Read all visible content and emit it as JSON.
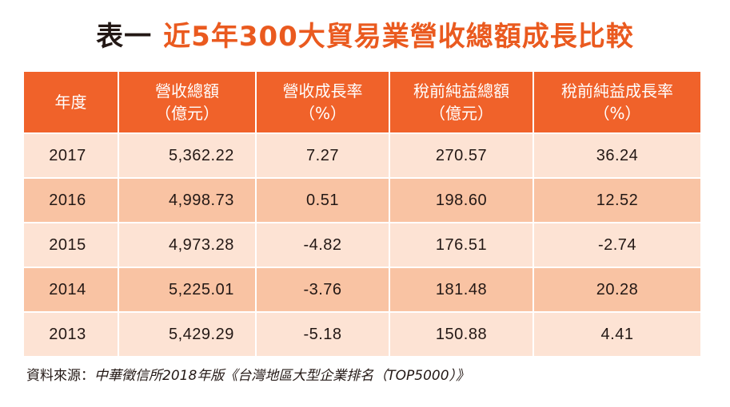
{
  "title": {
    "prefix": "表一",
    "main": "近5年300大貿易業營收總額成長比較"
  },
  "table": {
    "headers": [
      {
        "line1": "年度",
        "line2": ""
      },
      {
        "line1": "營收總額",
        "line2": "（億元）"
      },
      {
        "line1": "營收成長率",
        "line2": "（%）"
      },
      {
        "line1": "稅前純益總額",
        "line2": "（億元）"
      },
      {
        "line1": "稅前純益成長率",
        "line2": "（%）"
      }
    ],
    "rows": [
      {
        "year": "2017",
        "revenue": "5,362.22",
        "revenue_growth": "7.27",
        "pretax_profit": "270.57",
        "profit_growth": "36.24"
      },
      {
        "year": "2016",
        "revenue": "4,998.73",
        "revenue_growth": "0.51",
        "pretax_profit": "198.60",
        "profit_growth": "12.52"
      },
      {
        "year": "2015",
        "revenue": "4,973.28",
        "revenue_growth": "-4.82",
        "pretax_profit": "176.51",
        "profit_growth": "-2.74"
      },
      {
        "year": "2014",
        "revenue": "5,225.01",
        "revenue_growth": "-3.76",
        "pretax_profit": "181.48",
        "profit_growth": "20.28"
      },
      {
        "year": "2013",
        "revenue": "5,429.29",
        "revenue_growth": "-5.18",
        "pretax_profit": "150.88",
        "profit_growth": "4.41"
      }
    ]
  },
  "source": {
    "label": "資料來源：",
    "text": "中華徵信所2018年版《台灣地區大型企業排名（TOP5000）》"
  },
  "colors": {
    "accent": "#ea5a1f",
    "header_bg": "#f0622a",
    "row_light": "#fde3d4",
    "row_dark": "#f9c3a3"
  }
}
